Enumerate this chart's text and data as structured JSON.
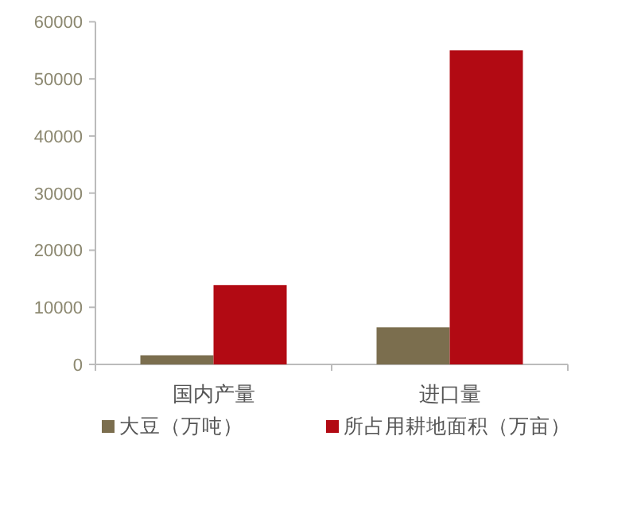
{
  "chart_data": {
    "type": "bar",
    "categories": [
      "国内产量",
      "进口量"
    ],
    "series": [
      {
        "name": "大豆（万吨）",
        "color": "#7b6e4e",
        "values": [
          1600,
          6500
        ]
      },
      {
        "name": "所占用耕地面积（万亩）",
        "color": "#b20a13",
        "values": [
          13900,
          55000
        ]
      }
    ],
    "ylim": [
      0,
      60000
    ],
    "yticks": [
      0,
      10000,
      20000,
      30000,
      40000,
      50000,
      60000
    ],
    "grid": false,
    "legend": "bottom"
  }
}
